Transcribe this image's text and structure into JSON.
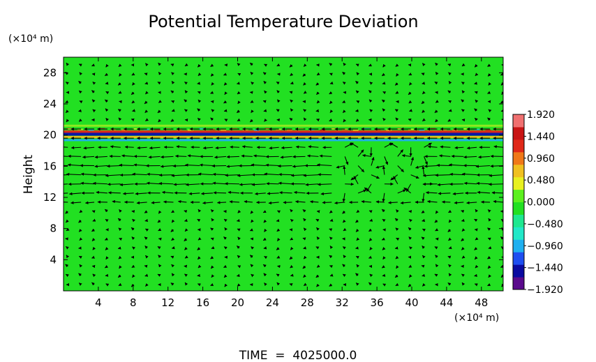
{
  "chart_data": {
    "type": "heatmap",
    "title": "Potential Temperature Deviation",
    "ylabel": "Height",
    "y_unit": "(×10⁴ m)",
    "x_unit": "(×10⁴ m)",
    "x_ticks": [
      "4",
      "8",
      "12",
      "16",
      "20",
      "24",
      "28",
      "32",
      "36",
      "40",
      "44",
      "48"
    ],
    "y_ticks": [
      "4",
      "8",
      "12",
      "16",
      "20",
      "24",
      "28"
    ],
    "xlim": [
      0,
      50.5
    ],
    "ylim": [
      0,
      30
    ],
    "colorbar": {
      "tick_labels": [
        "1.920",
        "1.440",
        "0.960",
        "0.480",
        "0.000",
        "−0.480",
        "−0.960",
        "−1.440",
        "−1.920"
      ],
      "range": [
        -1.92,
        1.92
      ],
      "colors": [
        "#5a0a8c",
        "#0a0aa0",
        "#1e4ef0",
        "#1fb0f0",
        "#22e8c8",
        "#1ee890",
        "#22e022",
        "#5cf01e",
        "#e8f020",
        "#f0c020",
        "#f07818",
        "#e02818",
        "#c81414",
        "#f07070"
      ]
    },
    "field": {
      "background_value": 0.0,
      "background_color": "#22e022",
      "bands": [
        {
          "y": 20.15,
          "value": -1.6,
          "color": "#0a0ab0"
        },
        {
          "y": 20.45,
          "value": 1.1,
          "color": "#e02818"
        },
        {
          "y": 19.75,
          "value": 0.7,
          "color": "#f0c020"
        },
        {
          "y": 19.35,
          "value": -0.5,
          "color": "#1fb0f0"
        },
        {
          "y": 21.2,
          "value": 0.3,
          "color": "#e8f020"
        }
      ]
    },
    "vectors": {
      "dominant_direction": "westward",
      "strong_layer_y": [
        11,
        19
      ],
      "grid_x": [
        0.5,
        50.5
      ],
      "grid_y": [
        0.8,
        29
      ]
    },
    "footer": "TIME  =  4025000.0"
  }
}
